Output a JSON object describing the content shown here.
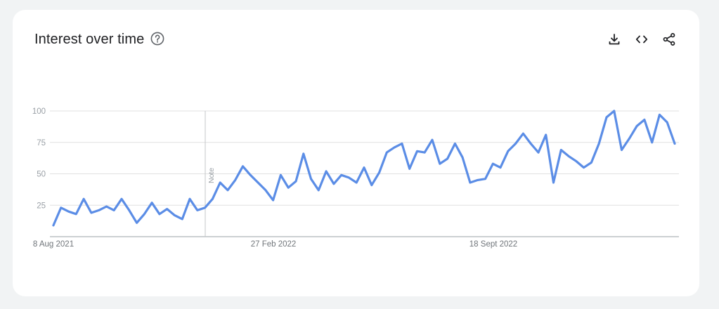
{
  "header": {
    "title": "Interest over time"
  },
  "icons": {
    "help": "help-circle-icon",
    "download": "download-icon",
    "embed": "code-embed-icon",
    "share": "share-icon"
  },
  "colors": {
    "line": "#5b8de6",
    "grid": "#e0e0e0",
    "axis": "#9aa0a6"
  },
  "chart_data": {
    "type": "line",
    "title": "Interest over time",
    "xlabel": "",
    "ylabel": "",
    "ylim": [
      0,
      100
    ],
    "yticks": [
      25,
      50,
      75,
      100
    ],
    "xtick_labels": [
      "8 Aug 2021",
      "27 Feb 2022",
      "18 Sept 2022"
    ],
    "grid": true,
    "annotations": [
      "Note"
    ],
    "series": [
      {
        "values": [
          9,
          23,
          20,
          18,
          30,
          19,
          21,
          24,
          21,
          30,
          21,
          11,
          18,
          27,
          18,
          22,
          17,
          14,
          30,
          21,
          23,
          30,
          43,
          37,
          45,
          56,
          49,
          43,
          37,
          29,
          49,
          39,
          44,
          66,
          46,
          37,
          52,
          42,
          49,
          47,
          43,
          55,
          41,
          51,
          67,
          71,
          74,
          54,
          68,
          67,
          77,
          58,
          62,
          74,
          63,
          43,
          45,
          46,
          58,
          55,
          68,
          74,
          82,
          74,
          67,
          81,
          43,
          69,
          64,
          60,
          55,
          59,
          74,
          95,
          100,
          69,
          78,
          88,
          93,
          75,
          97,
          91,
          74
        ]
      }
    ]
  }
}
